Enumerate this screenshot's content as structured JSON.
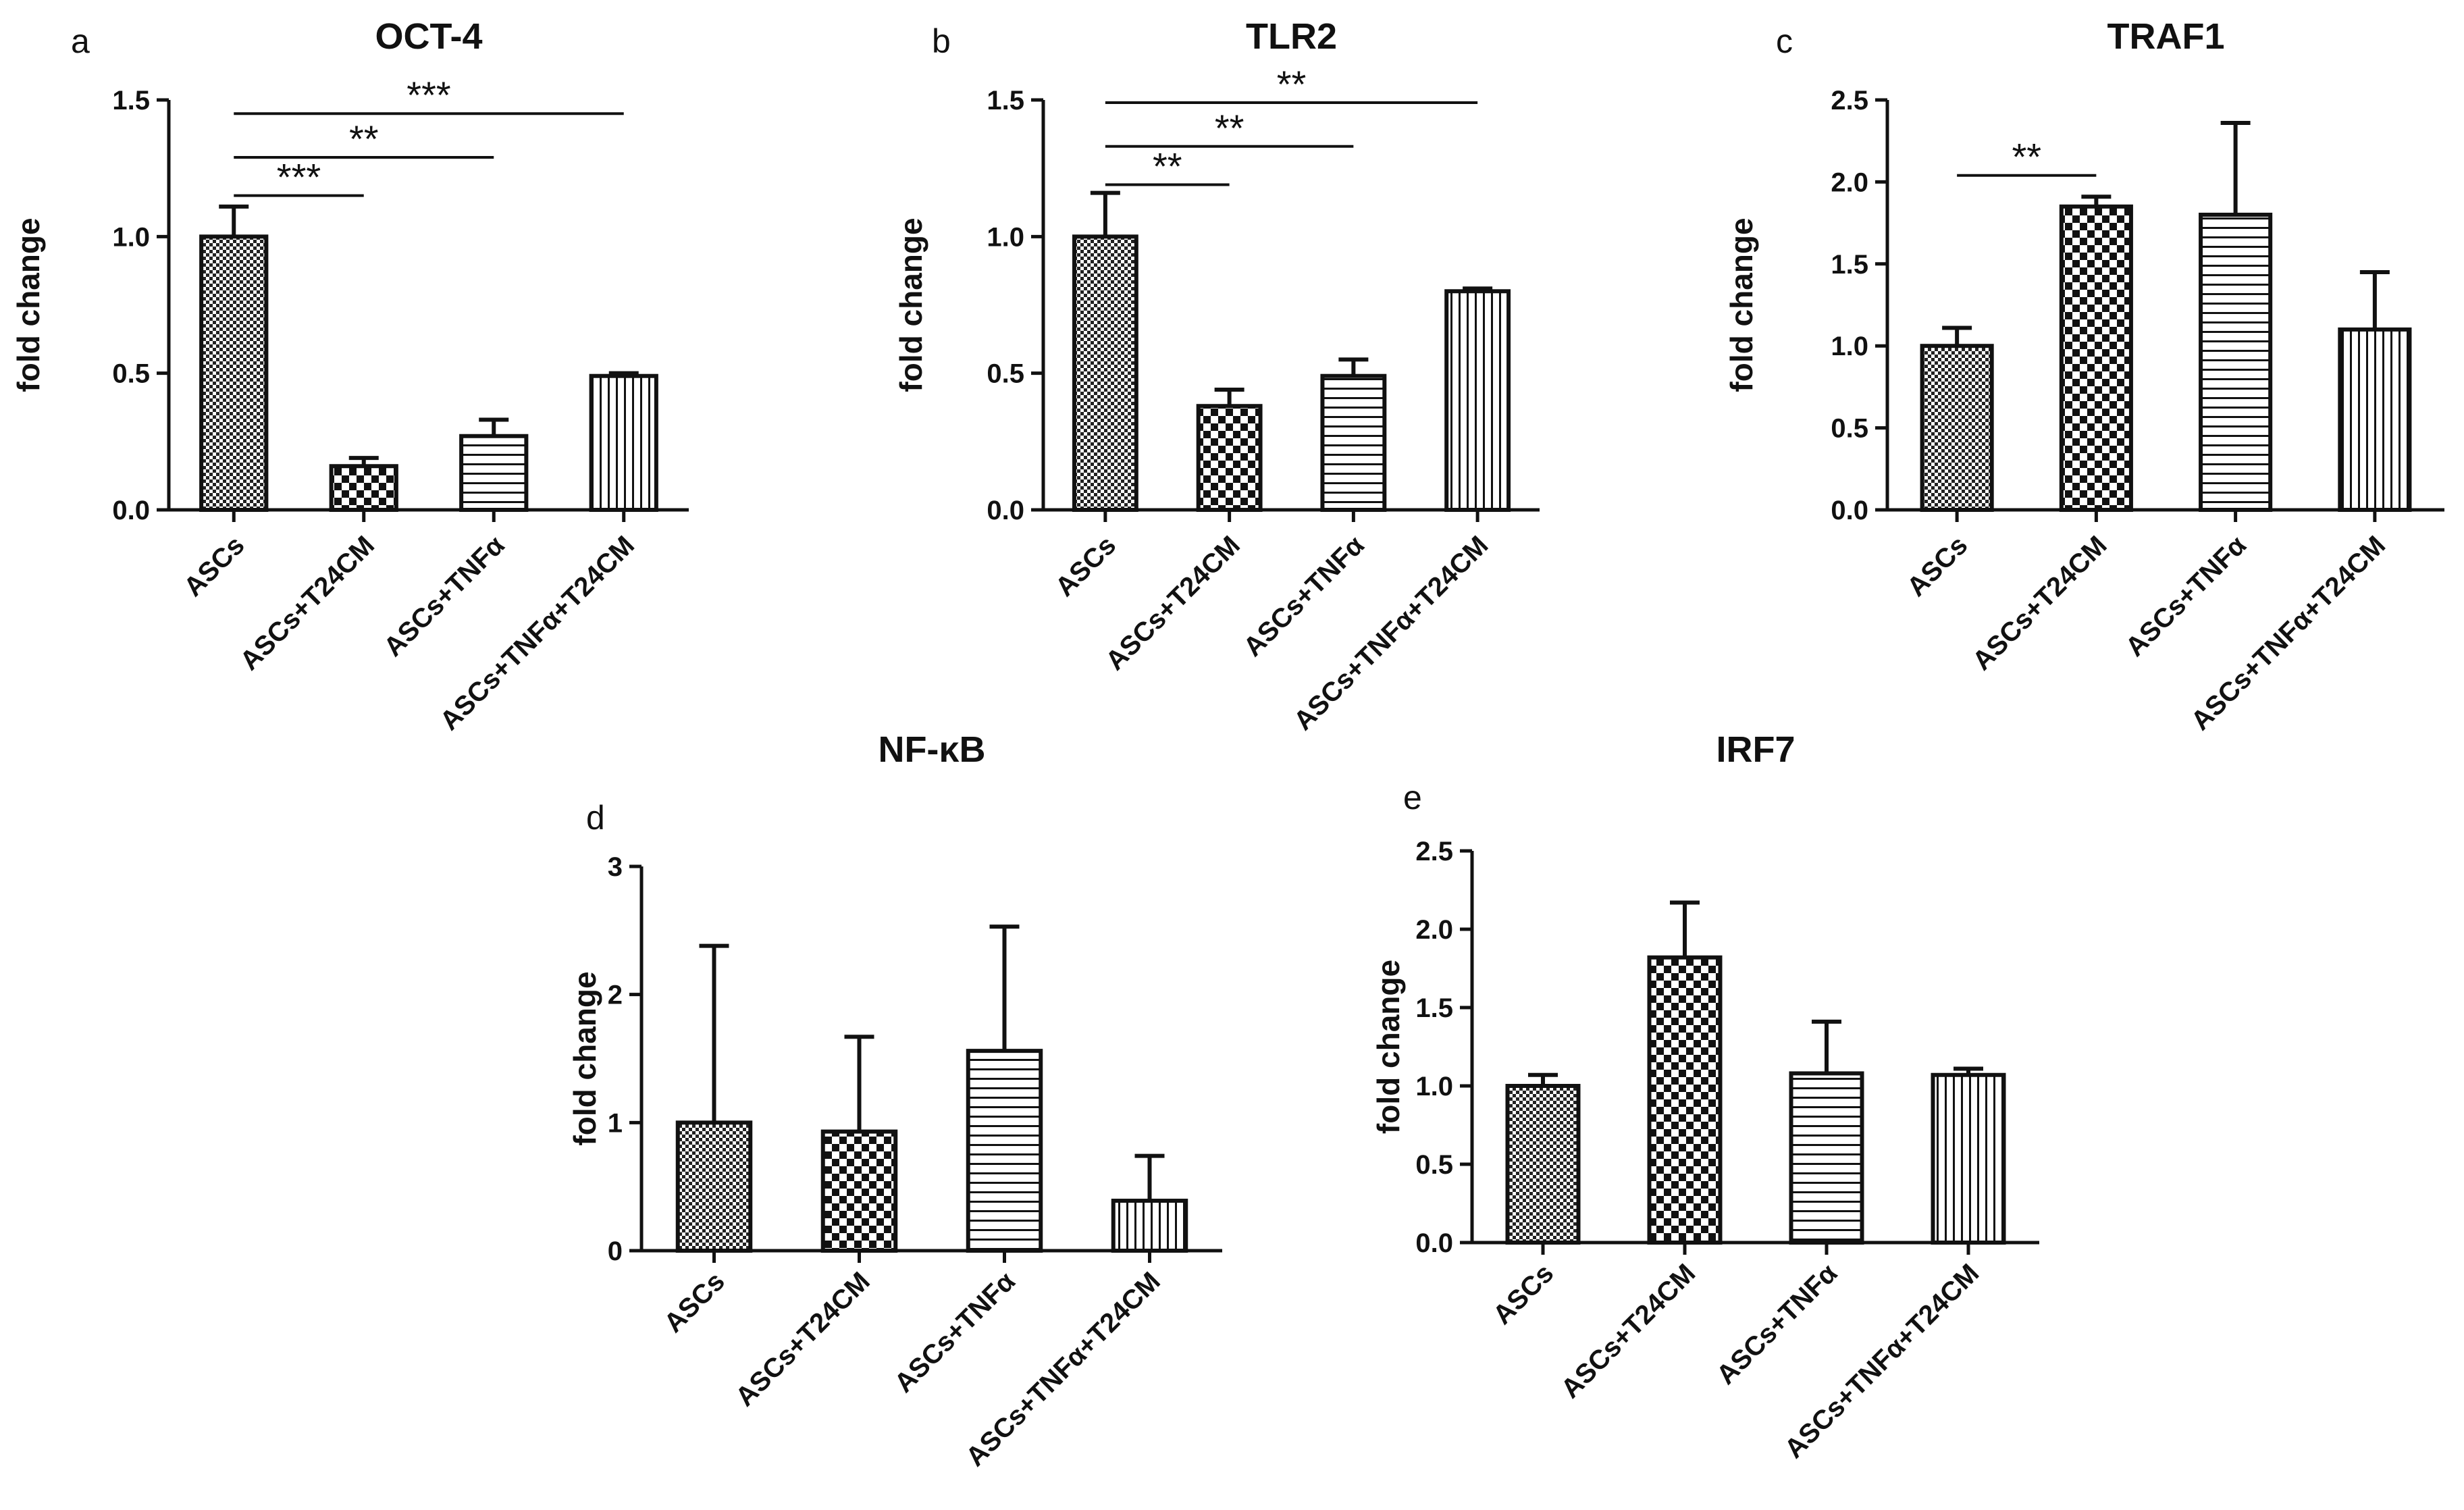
{
  "chart_data": [
    {
      "panel": "a",
      "type": "bar",
      "title": "OCT-4",
      "ylabel": "fold change",
      "xlabel": "",
      "ylim": [
        0,
        1.5
      ],
      "yticks": [
        "0.0",
        "0.5",
        "1.0",
        "1.5"
      ],
      "categories": [
        "ASCs",
        "ASCs+T24CM",
        "ASCs+TNFα",
        "ASCs+TNFα+T24CM"
      ],
      "values": [
        1.0,
        0.16,
        0.27,
        0.49
      ],
      "errors": [
        0.11,
        0.03,
        0.06,
        0.01
      ],
      "patterns": [
        "dense-check",
        "check",
        "hlines",
        "vlines"
      ],
      "significance": [
        {
          "from": 0,
          "to": 1,
          "label": "***",
          "y": 1.15
        },
        {
          "from": 0,
          "to": 2,
          "label": "**",
          "y": 1.29
        },
        {
          "from": 0,
          "to": 3,
          "label": "***",
          "y": 1.45
        }
      ]
    },
    {
      "panel": "b",
      "type": "bar",
      "title": "TLR2",
      "ylabel": "fold change",
      "xlabel": "",
      "ylim": [
        0,
        1.5
      ],
      "yticks": [
        "0.0",
        "0.5",
        "1.0",
        "1.5"
      ],
      "categories": [
        "ASCs",
        "ASCs+T24CM",
        "ASCs+TNFα",
        "ASCs+TNFα+T24CM"
      ],
      "values": [
        1.0,
        0.38,
        0.49,
        0.8
      ],
      "errors": [
        0.16,
        0.06,
        0.06,
        0.01
      ],
      "patterns": [
        "dense-check",
        "check",
        "hlines",
        "vlines"
      ],
      "significance": [
        {
          "from": 0,
          "to": 1,
          "label": "**",
          "y": 1.19
        },
        {
          "from": 0,
          "to": 2,
          "label": "**",
          "y": 1.33
        },
        {
          "from": 0,
          "to": 3,
          "label": "**",
          "y": 1.49
        }
      ]
    },
    {
      "panel": "c",
      "type": "bar",
      "title": "TRAF1",
      "ylabel": "fold change",
      "xlabel": "",
      "ylim": [
        0,
        2.5
      ],
      "yticks": [
        "0.0",
        "0.5",
        "1.0",
        "1.5",
        "2.0",
        "2.5"
      ],
      "categories": [
        "ASCs",
        "ASCs+T24CM",
        "ASCs+TNFα",
        "ASCs+TNFα+T24CM"
      ],
      "values": [
        1.0,
        1.85,
        1.8,
        1.1
      ],
      "errors": [
        0.11,
        0.06,
        0.56,
        0.35
      ],
      "patterns": [
        "dense-check",
        "check",
        "hlines",
        "vlines"
      ],
      "significance": [
        {
          "from": 0,
          "to": 1,
          "label": "**",
          "y": 2.04
        }
      ]
    },
    {
      "panel": "d",
      "type": "bar",
      "title": "NF-κB",
      "ylabel": "fold change",
      "xlabel": "",
      "ylim": [
        0,
        3
      ],
      "yticks": [
        "0",
        "1",
        "2",
        "3"
      ],
      "categories": [
        "ASCs",
        "ASCs+T24CM",
        "ASCs+TNFα",
        "ASCs+TNFα+T24CM"
      ],
      "values": [
        1.0,
        0.93,
        1.56,
        0.39
      ],
      "errors": [
        1.38,
        0.74,
        0.97,
        0.35
      ],
      "patterns": [
        "dense-check",
        "check",
        "hlines",
        "vlines"
      ],
      "significance": []
    },
    {
      "panel": "e",
      "type": "bar",
      "title": "IRF7",
      "ylabel": "fold change",
      "xlabel": "",
      "ylim": [
        0,
        2.5
      ],
      "yticks": [
        "0.0",
        "0.5",
        "1.0",
        "1.5",
        "2.0",
        "2.5"
      ],
      "categories": [
        "ASCs",
        "ASCs+T24CM",
        "ASCs+TNFα",
        "ASCs+TNFα+T24CM"
      ],
      "values": [
        1.0,
        1.82,
        1.08,
        1.07
      ],
      "errors": [
        0.07,
        0.35,
        0.33,
        0.04
      ],
      "patterns": [
        "dense-check",
        "check",
        "hlines",
        "vlines"
      ],
      "significance": []
    }
  ]
}
